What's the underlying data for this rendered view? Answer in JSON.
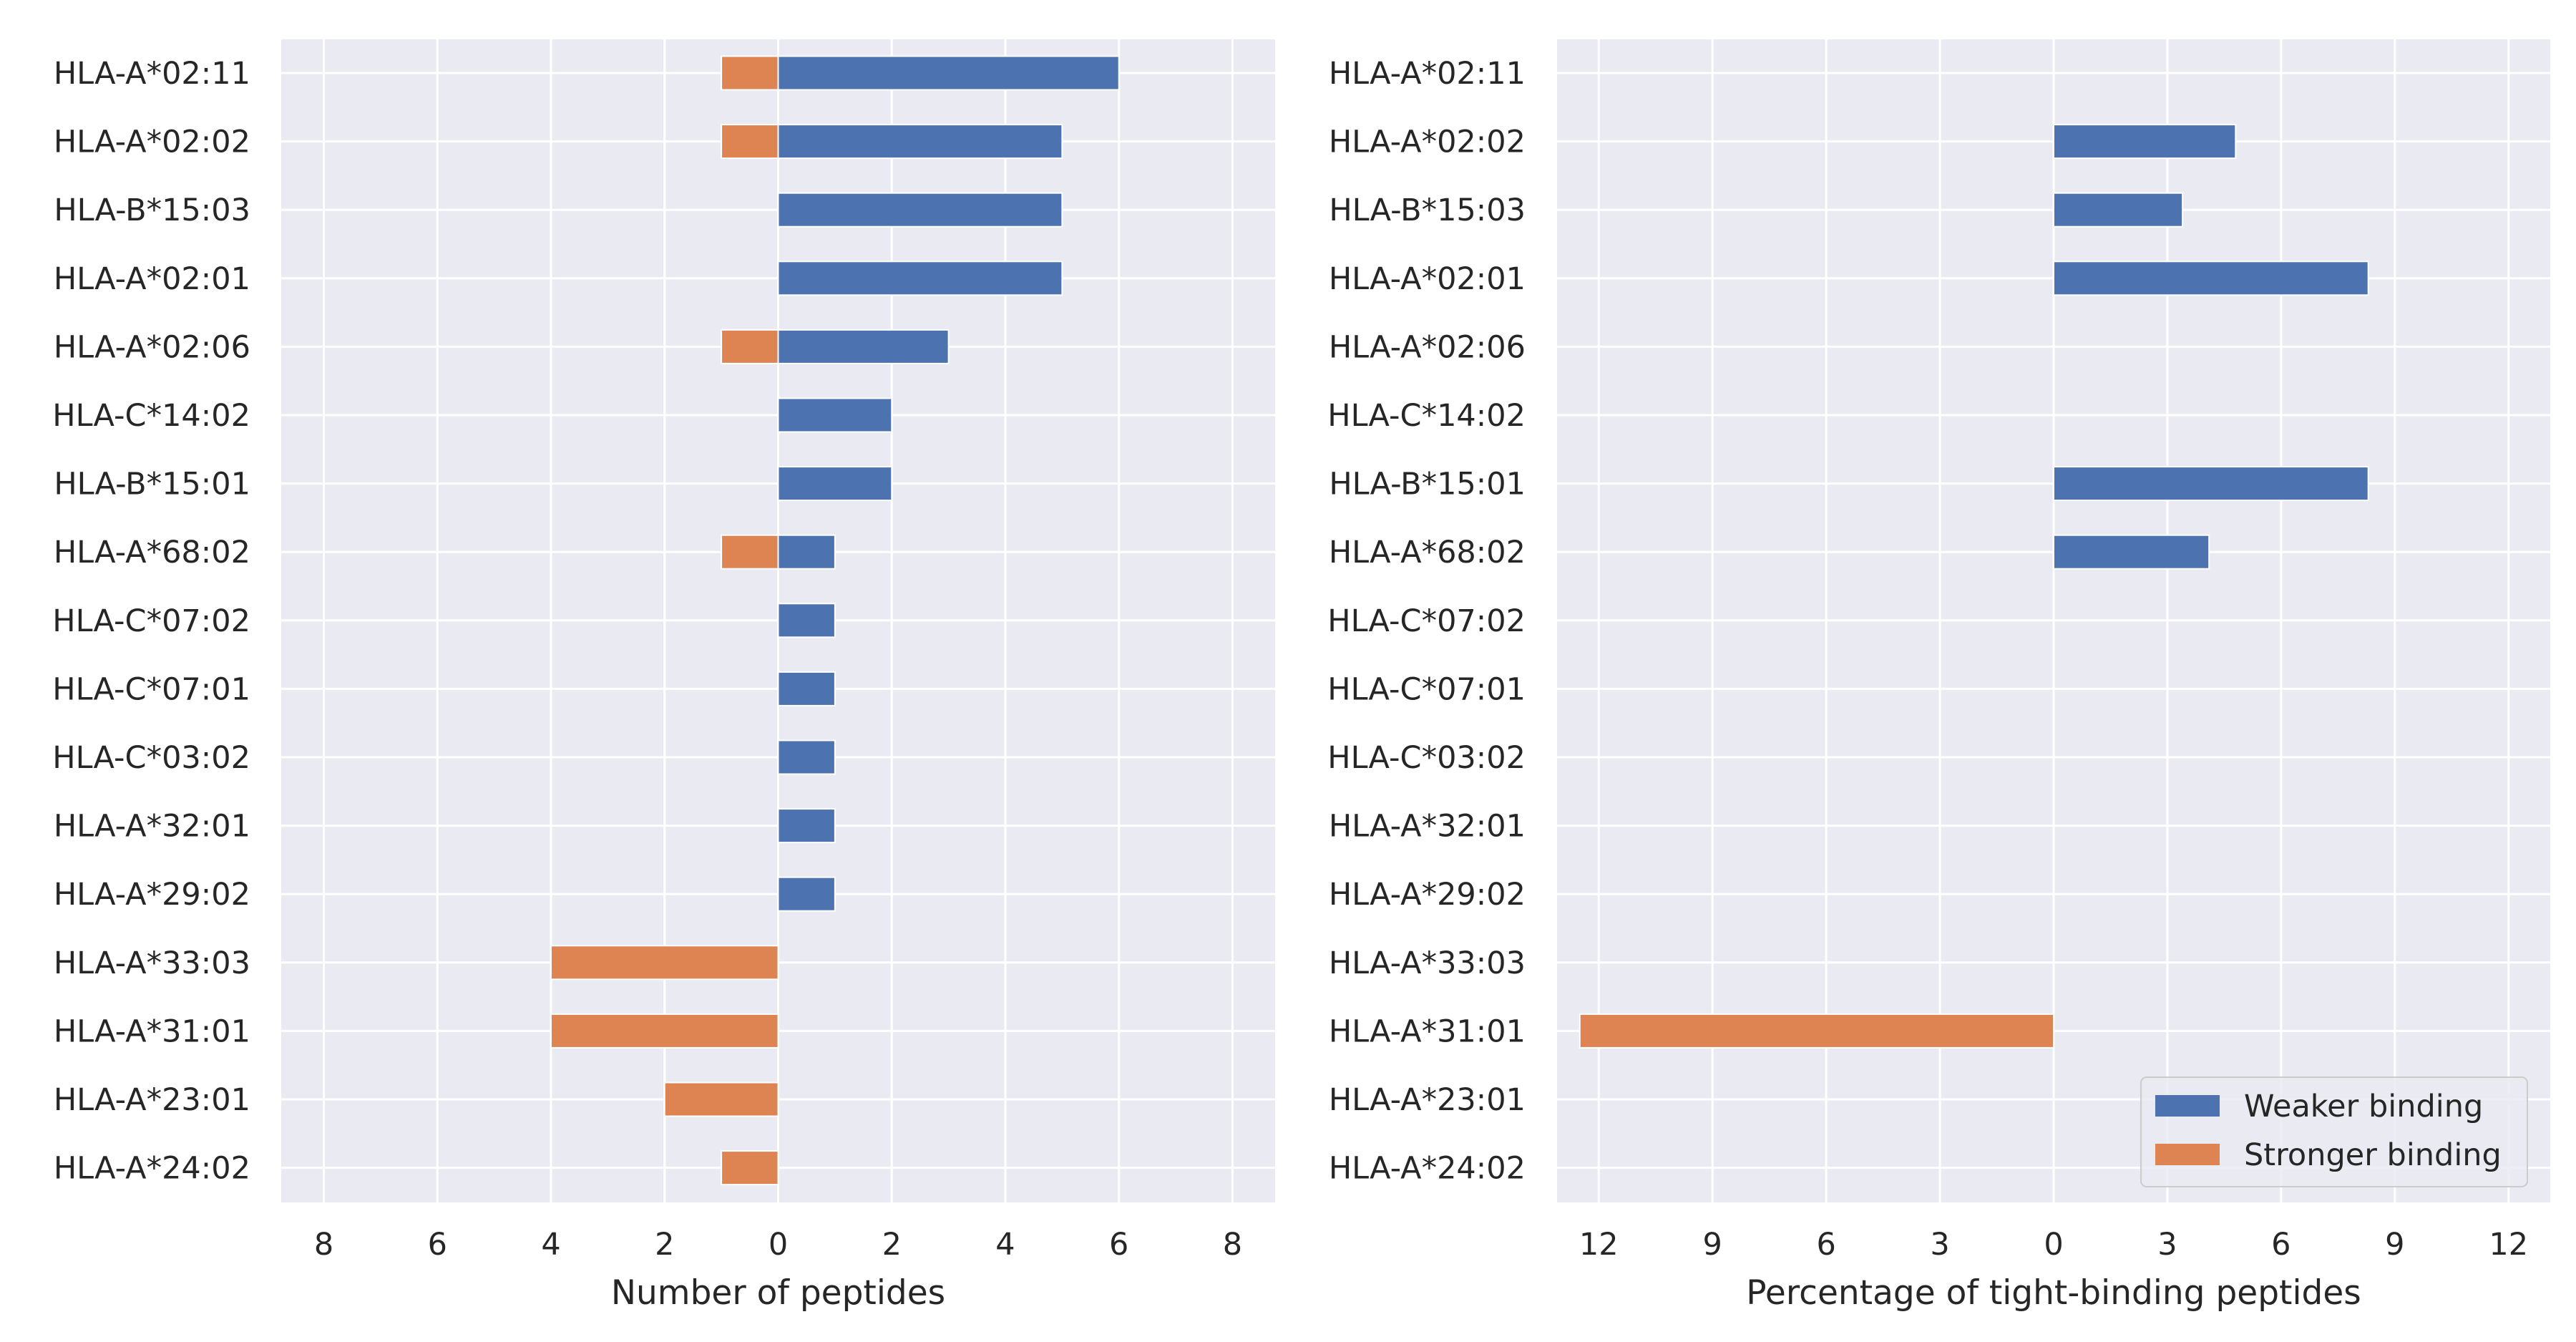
{
  "colors": {
    "weaker": "#4c72b0",
    "stronger": "#dd8452",
    "plot_bg": "#eaeaf2",
    "grid": "#ffffff",
    "text": "#262626"
  },
  "legend": {
    "placement": "lower-right",
    "weaker_label": "Weaker binding",
    "stronger_label": "Stronger binding"
  },
  "chart_data": [
    {
      "type": "bar",
      "orientation": "horizontal",
      "xlabel": "Number of peptides",
      "ylabel": "",
      "xlim": [
        -8.75,
        8.75
      ],
      "xticks": [
        -8,
        -6,
        -4,
        -2,
        0,
        2,
        4,
        6,
        8
      ],
      "xtick_labels": [
        "8",
        "6",
        "4",
        "2",
        "0",
        "2",
        "4",
        "6",
        "8"
      ],
      "grid": true,
      "categories": [
        "HLA-A*02:11",
        "HLA-A*02:02",
        "HLA-B*15:03",
        "HLA-A*02:01",
        "HLA-A*02:06",
        "HLA-C*14:02",
        "HLA-B*15:01",
        "HLA-A*68:02",
        "HLA-C*07:02",
        "HLA-C*07:01",
        "HLA-C*03:02",
        "HLA-A*32:01",
        "HLA-A*29:02",
        "HLA-A*33:03",
        "HLA-A*31:01",
        "HLA-A*23:01",
        "HLA-A*24:02"
      ],
      "series": [
        {
          "name": "Weaker binding",
          "values": [
            6,
            5,
            5,
            5,
            3,
            2,
            2,
            1,
            1,
            1,
            1,
            1,
            1,
            0,
            0,
            0,
            0
          ]
        },
        {
          "name": "Stronger binding",
          "values": [
            -1,
            -1,
            0,
            0,
            -1,
            0,
            0,
            -1,
            0,
            0,
            0,
            0,
            0,
            -4,
            -4,
            -2,
            -1
          ]
        }
      ]
    },
    {
      "type": "bar",
      "orientation": "horizontal",
      "xlabel": "Percentage of tight-binding peptides",
      "ylabel": "",
      "xlim": [
        -13.1,
        13.1
      ],
      "xticks": [
        -12,
        -9,
        -6,
        -3,
        0,
        3,
        6,
        9,
        12
      ],
      "xtick_labels": [
        "12",
        "9",
        "6",
        "3",
        "0",
        "3",
        "6",
        "9",
        "12"
      ],
      "grid": true,
      "categories": [
        "HLA-A*02:11",
        "HLA-A*02:02",
        "HLA-B*15:03",
        "HLA-A*02:01",
        "HLA-A*02:06",
        "HLA-C*14:02",
        "HLA-B*15:01",
        "HLA-A*68:02",
        "HLA-C*07:02",
        "HLA-C*07:01",
        "HLA-C*03:02",
        "HLA-A*32:01",
        "HLA-A*29:02",
        "HLA-A*33:03",
        "HLA-A*31:01",
        "HLA-A*23:01",
        "HLA-A*24:02"
      ],
      "series": [
        {
          "name": "Weaker binding",
          "values": [
            0,
            4.8,
            3.4,
            8.3,
            0,
            0,
            8.3,
            4.1,
            0,
            0,
            0,
            0,
            0,
            0,
            0,
            0,
            0
          ]
        },
        {
          "name": "Stronger binding",
          "values": [
            0,
            0,
            0,
            0,
            0,
            0,
            0,
            0,
            0,
            0,
            0,
            0,
            0,
            0,
            -12.5,
            0,
            0
          ]
        }
      ]
    }
  ]
}
